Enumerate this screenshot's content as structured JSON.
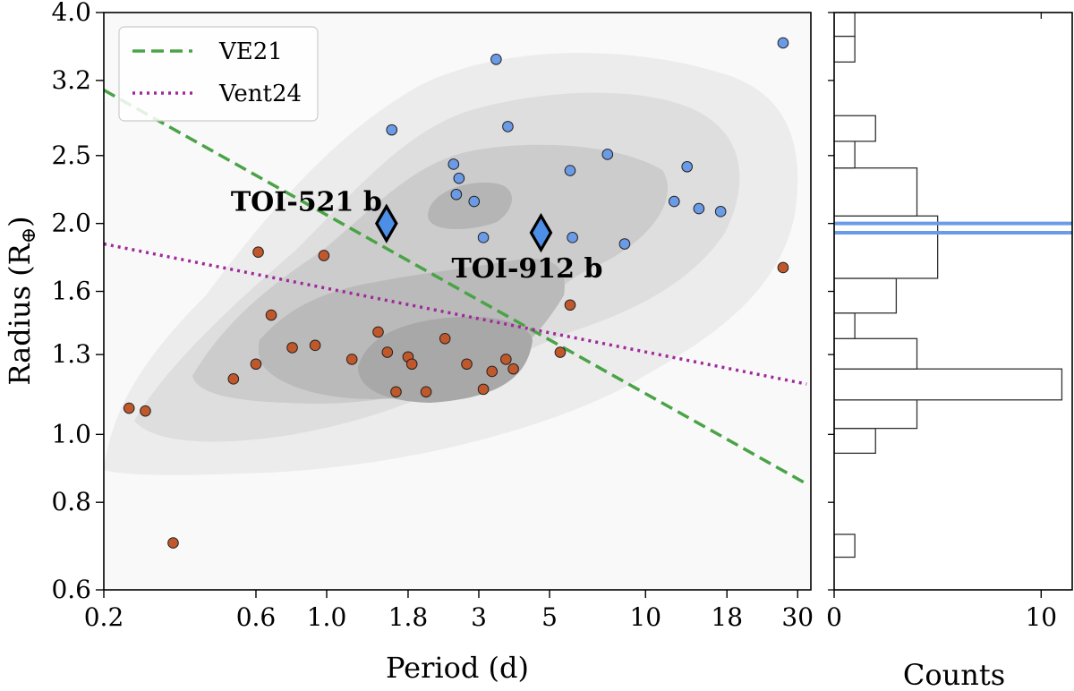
{
  "chart_data": [
    {
      "type": "scatter",
      "xlabel": "Period (d)",
      "ylabel": "Radius (R",
      "ylabel_sub": "⊕",
      "ylabel_close": ")",
      "xscale": "log",
      "yscale": "log",
      "xlim": [
        0.2,
        33
      ],
      "ylim": [
        0.6,
        4.0
      ],
      "xticks": [
        0.2,
        0.6,
        1.0,
        1.8,
        3,
        5,
        10,
        18,
        30
      ],
      "xtick_labels": [
        "0.2",
        "0.6",
        "1.0",
        "1.8",
        "3",
        "5",
        "10",
        "18",
        "30"
      ],
      "yticks": [
        0.6,
        0.8,
        1.0,
        1.3,
        1.6,
        2.0,
        2.5,
        3.2,
        4.0
      ],
      "ytick_labels": [
        "0.6",
        "0.8",
        "1.0",
        "1.3",
        "1.6",
        "2.0",
        "2.5",
        "3.2",
        "4.0"
      ],
      "background": "density contours (grey)",
      "legend": {
        "location": "upper-left",
        "entries": [
          {
            "label": "VE21",
            "style": "dashed",
            "color": "#4aa346"
          },
          {
            "label": "Vent24",
            "style": "dotted",
            "color": "#a0289a"
          }
        ]
      },
      "lines": [
        {
          "name": "VE21",
          "color": "#4aa346",
          "style": "dashed",
          "points": [
            [
              0.2,
              3.1
            ],
            [
              32,
              0.85
            ]
          ]
        },
        {
          "name": "Vent24",
          "color": "#a0289a",
          "style": "dotted",
          "points": [
            [
              0.2,
              1.87
            ],
            [
              32,
              1.18
            ]
          ]
        }
      ],
      "series": [
        {
          "name": "",
          "color": "#6b9be6",
          "marker": "circle",
          "points": [
            [
              1.6,
              2.72
            ],
            [
              3.4,
              3.43
            ],
            [
              3.7,
              2.75
            ],
            [
              2.5,
              2.43
            ],
            [
              2.6,
              2.32
            ],
            [
              2.55,
              2.2
            ],
            [
              2.9,
              2.15
            ],
            [
              5.8,
              2.38
            ],
            [
              7.6,
              2.51
            ],
            [
              13.5,
              2.41
            ],
            [
              12.3,
              2.15
            ],
            [
              14.7,
              2.1
            ],
            [
              17.2,
              2.08
            ],
            [
              3.1,
              1.91
            ],
            [
              5.9,
              1.91
            ],
            [
              8.6,
              1.87
            ],
            [
              27,
              3.62
            ]
          ]
        },
        {
          "name": "",
          "color": "#c0582b",
          "marker": "circle",
          "points": [
            [
              0.24,
              1.09
            ],
            [
              0.27,
              1.08
            ],
            [
              0.33,
              0.7
            ],
            [
              0.61,
              1.82
            ],
            [
              0.67,
              1.48
            ],
            [
              0.6,
              1.26
            ],
            [
              0.51,
              1.2
            ],
            [
              0.78,
              1.33
            ],
            [
              0.92,
              1.34
            ],
            [
              0.98,
              1.8
            ],
            [
              1.2,
              1.28
            ],
            [
              1.45,
              1.4
            ],
            [
              1.55,
              1.31
            ],
            [
              1.8,
              1.29
            ],
            [
              1.85,
              1.26
            ],
            [
              1.65,
              1.15
            ],
            [
              2.05,
              1.15
            ],
            [
              2.35,
              1.37
            ],
            [
              2.75,
              1.26
            ],
            [
              3.3,
              1.23
            ],
            [
              3.1,
              1.16
            ],
            [
              3.65,
              1.28
            ],
            [
              3.85,
              1.24
            ],
            [
              5.8,
              1.53
            ],
            [
              5.4,
              1.31
            ],
            [
              27,
              1.73
            ]
          ]
        }
      ],
      "highlighted": [
        {
          "label": "TOI-521 b",
          "x": 1.54,
          "y": 2.0,
          "color": "#4d8fe6",
          "marker": "diamond"
        },
        {
          "label": "TOI-912 b",
          "x": 4.7,
          "y": 1.94,
          "color": "#4d8fe6",
          "marker": "diamond"
        }
      ],
      "grid": false
    },
    {
      "type": "bar",
      "orientation": "horizontal",
      "xlabel": "Counts",
      "xlim": [
        0,
        11.5
      ],
      "xticks": [
        0,
        10
      ],
      "xtick_labels": [
        "0",
        "10"
      ],
      "bins": [
        {
          "range": [
            0.668,
            0.72
          ],
          "count": 1
        },
        {
          "range": [
            0.94,
            1.02
          ],
          "count": 2
        },
        {
          "range": [
            1.02,
            1.12
          ],
          "count": 4
        },
        {
          "range": [
            1.12,
            1.24
          ],
          "count": 11
        },
        {
          "range": [
            1.24,
            1.37
          ],
          "count": 4
        },
        {
          "range": [
            1.37,
            1.49
          ],
          "count": 1
        },
        {
          "range": [
            1.49,
            1.67
          ],
          "count": 3
        },
        {
          "range": [
            1.67,
            2.05
          ],
          "count": 5
        },
        {
          "range": [
            2.05,
            2.4
          ],
          "count": 4
        },
        {
          "range": [
            2.4,
            2.62
          ],
          "count": 1
        },
        {
          "range": [
            2.62,
            2.85
          ],
          "count": 2
        },
        {
          "range": [
            3.4,
            3.7
          ],
          "count": 1
        },
        {
          "range": [
            3.7,
            4.0
          ],
          "count": 1
        }
      ],
      "hlines": [
        1.94,
        2.0
      ],
      "hline_color": "#6b9be6"
    }
  ]
}
